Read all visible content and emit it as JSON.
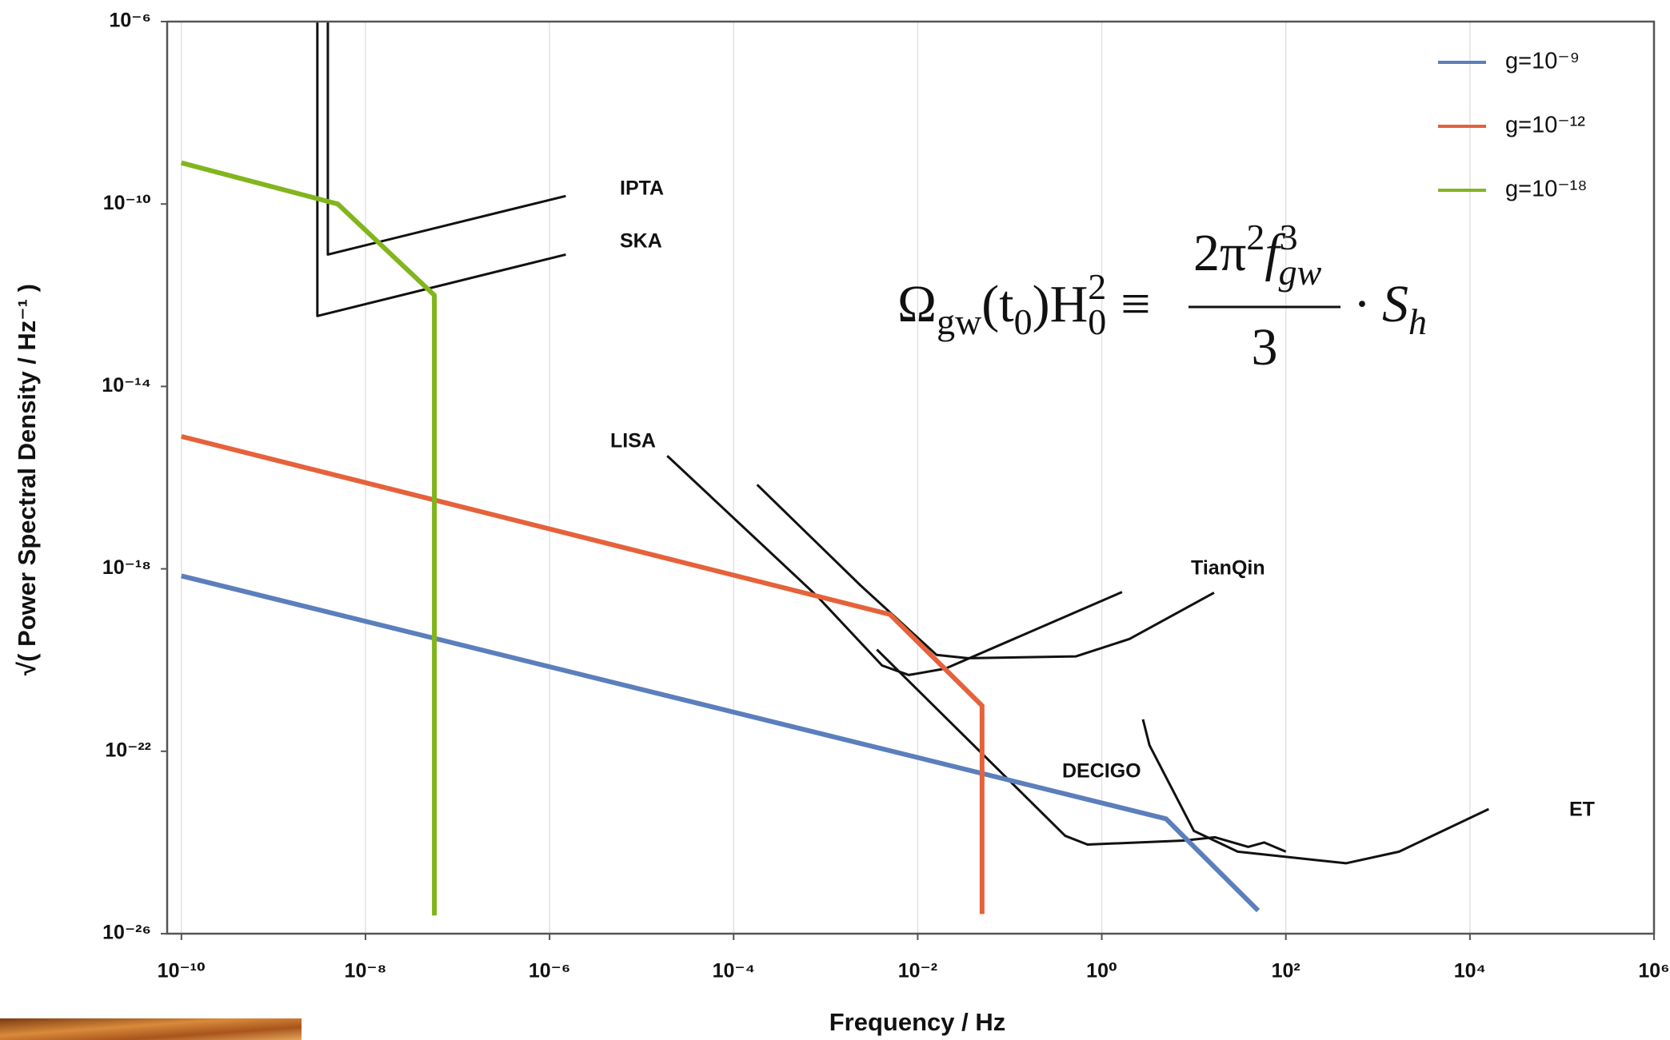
{
  "chart_data": {
    "type": "line",
    "xscale": "log",
    "yscale": "log",
    "xlabel": "Frequency / Hz",
    "ylabel": "√( Power Spectral Density / Hz⁻¹ )",
    "xlim": [
      7e-11,
      1000000.0
    ],
    "ylim": [
      1e-26,
      1e-06
    ],
    "xticks": [
      {
        "value": 1e-10,
        "label": "10⁻¹⁰"
      },
      {
        "value": 1e-08,
        "label": "10⁻⁸"
      },
      {
        "value": 1e-06,
        "label": "10⁻⁶"
      },
      {
        "value": 0.0001,
        "label": "10⁻⁴"
      },
      {
        "value": 0.01,
        "label": "10⁻²"
      },
      {
        "value": 1,
        "label": "10⁰"
      },
      {
        "value": 100,
        "label": "10²"
      },
      {
        "value": 10000,
        "label": "10⁴"
      },
      {
        "value": 1000000,
        "label": "10⁶"
      }
    ],
    "yticks": [
      {
        "value": 1e-06,
        "label": "10⁻⁶"
      },
      {
        "value": 1e-10,
        "label": "10⁻¹⁰"
      },
      {
        "value": 1e-14,
        "label": "10⁻¹⁴"
      },
      {
        "value": 1e-18,
        "label": "10⁻¹⁸"
      },
      {
        "value": 1e-22,
        "label": "10⁻²²"
      },
      {
        "value": 1e-26,
        "label": "10⁻²⁶"
      }
    ],
    "grid": "x",
    "legend": "upper right",
    "series": [
      {
        "name": "g=10⁻⁹",
        "color": "#5b7fbc",
        "x": [
          1e-10,
          5,
          50
        ],
        "values": [
          7e-19,
          3.3e-24,
          3.2e-26
        ]
      },
      {
        "name": "g=10⁻¹²",
        "color": "#e5623a",
        "x": [
          1e-10,
          0.005,
          0.05,
          0.05
        ],
        "values": [
          8e-16,
          1e-19,
          1e-21,
          2.7e-26
        ]
      },
      {
        "name": "g=10⁻¹⁸",
        "color": "#82b51d",
        "x": [
          1e-10,
          5e-09,
          5.6e-08,
          5.6e-08
        ],
        "values": [
          8e-10,
          1e-10,
          1e-12,
          2.5e-26
        ]
      }
    ],
    "curves": [
      {
        "name": "IPTA",
        "color": "#111111",
        "x": [
          3.9e-09,
          3.9e-09,
          1.5e-06
        ],
        "values": [
          1e-06,
          7.8e-12,
          1.5e-10
        ]
      },
      {
        "name": "SKA",
        "color": "#111111",
        "x": [
          3e-09,
          3e-09,
          1.5e-06
        ],
        "values": [
          1e-06,
          3.5e-13,
          7.8e-12
        ]
      },
      {
        "name": "LISA",
        "color": "#111111",
        "x": [
          1.9e-05,
          0.00081,
          0.0041,
          0.008,
          0.02,
          1.66
        ],
        "values": [
          3e-16,
          2.5e-19,
          7.6e-21,
          4.7e-21,
          6.5e-21,
          3.1e-19
        ]
      },
      {
        "name": "TianQin",
        "color": "#111111",
        "x": [
          0.00018,
          0.0024,
          0.016,
          0.035,
          0.52,
          2,
          16.6
        ],
        "values": [
          7e-17,
          4.3e-19,
          1.3e-20,
          1.1e-20,
          1.2e-20,
          2.9e-20,
          3e-19
        ]
      },
      {
        "name": "DECIGO",
        "color": "#111111",
        "x": [
          0.0036,
          0.4,
          0.7,
          7.8,
          17,
          39,
          58,
          100
        ],
        "values": [
          1.7e-20,
          1.4e-24,
          9e-25,
          1.1e-24,
          1.3e-24,
          8e-25,
          1e-24,
          6.3e-25
        ]
      },
      {
        "name": "ET",
        "color": "#111111",
        "x": [
          2.8,
          3.3,
          10,
          30,
          450,
          1700,
          16000
        ],
        "values": [
          5e-22,
          1.35e-22,
          1.8e-24,
          6.3e-25,
          3.5e-25,
          6.3e-25,
          5.4e-24
        ]
      }
    ],
    "formula": [
      "Ω",
      "gw",
      "(t",
      "0",
      ")H",
      "0",
      "2",
      "≡",
      "2π",
      "2",
      "f",
      "3",
      "gw",
      "3",
      "·",
      "S",
      "h"
    ]
  }
}
